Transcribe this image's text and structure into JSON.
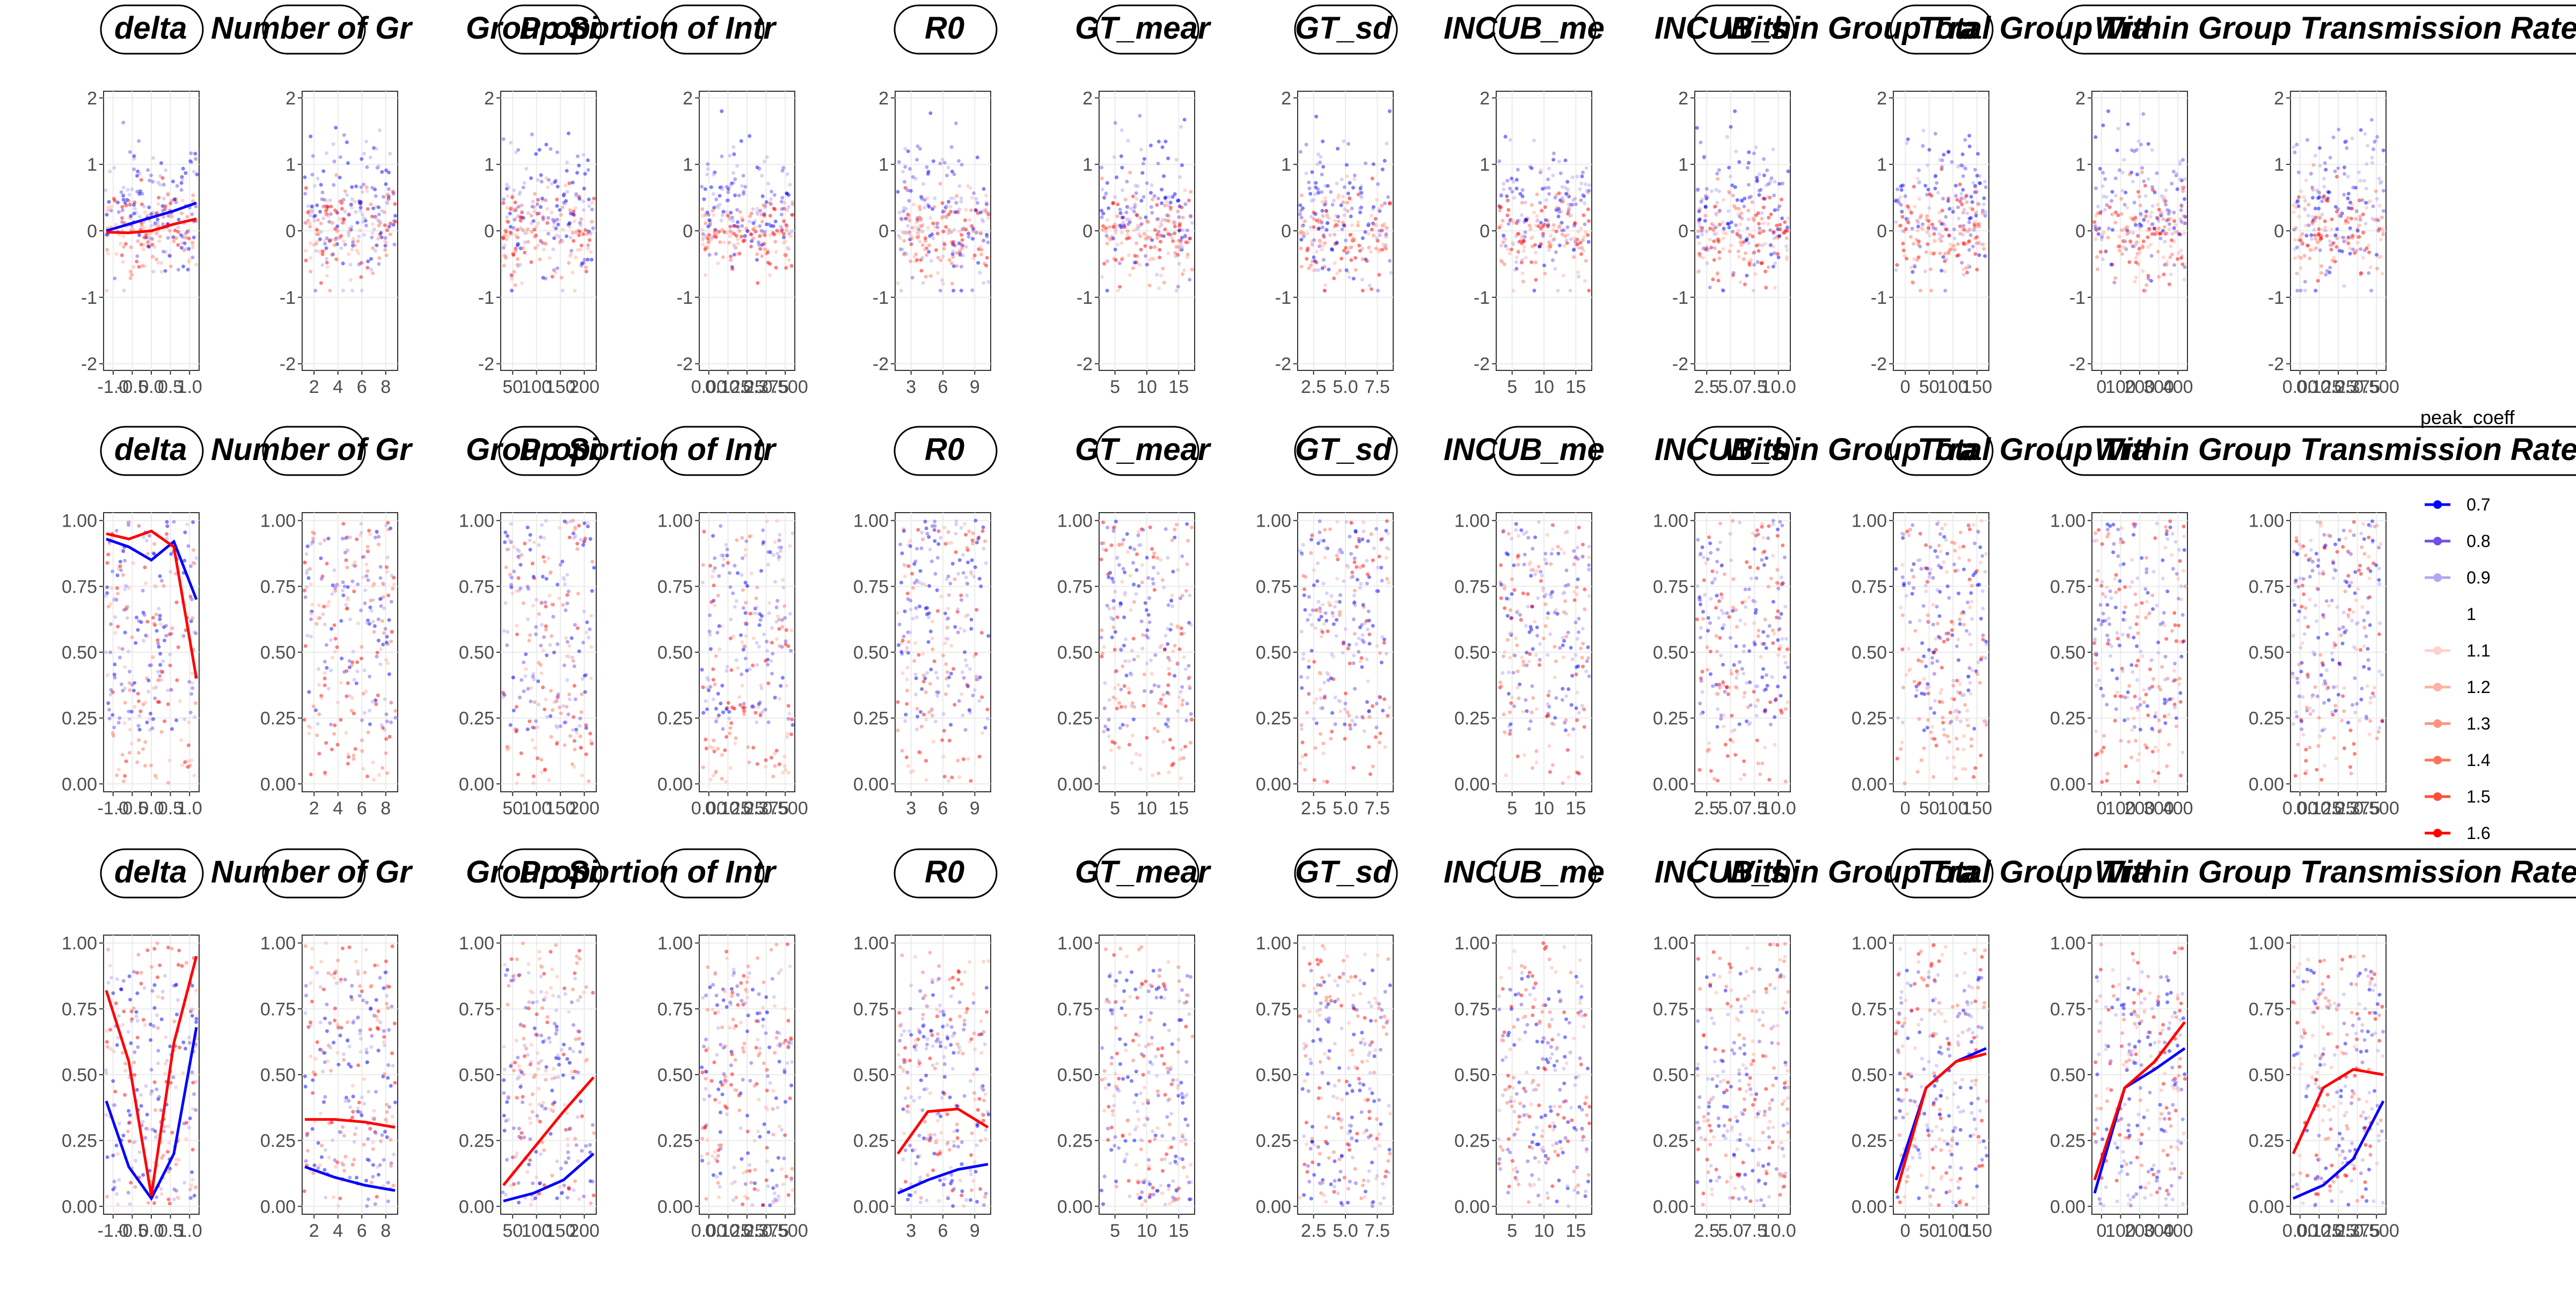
{
  "chart_data": {
    "type": "scatter",
    "description_note": "",
    "legend": {
      "title": "peak_coeff",
      "placement": "right",
      "entries": [
        {
          "label": "0.7",
          "color": "#0000ff"
        },
        {
          "label": "0.8",
          "color": "#6f50e8"
        },
        {
          "label": "0.9",
          "color": "#b4a7f2"
        },
        {
          "label": "1",
          "color": "#ffffff"
        },
        {
          "label": "1.1",
          "color": "#ffd2cc"
        },
        {
          "label": "1.2",
          "color": "#ffb2a3"
        },
        {
          "label": "1.3",
          "color": "#ff9480"
        },
        {
          "label": "1.4",
          "color": "#ff735c"
        },
        {
          "label": "1.5",
          "color": "#ff4d36"
        },
        {
          "label": "1.6",
          "color": "#ff0000"
        }
      ]
    },
    "panels": [
      {
        "strip": "delta",
        "xlim": [
          -1,
          1
        ],
        "xticks": [
          "-1.0",
          "-0.5",
          "0.0",
          "0.5",
          "1.0"
        ]
      },
      {
        "strip": "Number of Gr",
        "xlim": [
          1.7,
          8.3
        ],
        "xticks": [
          "2",
          "4",
          "6",
          "8"
        ]
      },
      {
        "strip": "Group Si",
        "xlim": [
          10,
          210
        ],
        "xticks": [
          "50",
          "100",
          "150",
          "200"
        ]
      },
      {
        "strip": "Proportion of Intr",
        "xlim": [
          0,
          0.5
        ],
        "xticks": [
          "0.00",
          "0.125",
          "0.25",
          "0.375",
          "0.500"
        ]
      },
      {
        "strip": "R0",
        "xlim": [
          0.5,
          11
        ],
        "xticks": [
          "3",
          "6",
          "9"
        ]
      },
      {
        "strip": "GT_mear",
        "xlim": [
          0.5,
          17
        ],
        "xticks": [
          "5",
          "10",
          "15"
        ]
      },
      {
        "strip": "GT_sd",
        "xlim": [
          0.5,
          9
        ],
        "xticks": [
          "2.5",
          "5.0",
          "7.5"
        ]
      },
      {
        "strip": "INCUB_me",
        "xlim": [
          0.5,
          17
        ],
        "xticks": [
          "5",
          "10",
          "15"
        ]
      },
      {
        "strip": "INCUB_s",
        "xlim": [
          0.5,
          10
        ],
        "xticks": [
          "2.5",
          "5.0",
          "7.5",
          "10.0"
        ]
      },
      {
        "strip": "Within Group Tra",
        "xlim": [
          0,
          160
        ],
        "xticks": [
          "0",
          "50",
          "100",
          "150"
        ]
      },
      {
        "strip": "Total Group Tra",
        "xlim": [
          -10,
          420
        ],
        "xticks": [
          "0",
          "100",
          "200",
          "300",
          "400"
        ]
      },
      {
        "strip": "Within Group Transmission Rate",
        "xlim": [
          0,
          0.5
        ],
        "xticks": [
          "0.00",
          "0.125",
          "0.25",
          "0.375",
          "0.500"
        ]
      }
    ],
    "rows": [
      {
        "ylim": [
          -2.1,
          2.1
        ],
        "yticks": [
          "-2",
          "-1",
          "0",
          "1",
          "2"
        ]
      },
      {
        "ylim": [
          -0.03,
          1.03
        ],
        "yticks": [
          "0.00",
          "0.25",
          "0.50",
          "0.75",
          "1.00"
        ]
      },
      {
        "ylim": [
          -0.03,
          1.03
        ],
        "yticks": [
          "0.00",
          "0.25",
          "0.50",
          "0.75",
          "1.00"
        ]
      }
    ],
    "trend_lines": [
      {
        "row": 0,
        "panel": 0,
        "series": "0.7",
        "y": [
          0.0,
          0.1,
          0.2,
          0.3,
          0.42
        ]
      },
      {
        "row": 0,
        "panel": 0,
        "series": "1.6",
        "y": [
          -0.02,
          -0.03,
          0.0,
          0.1,
          0.18
        ]
      },
      {
        "row": 1,
        "panel": 0,
        "series": "0.7",
        "y": [
          0.93,
          0.9,
          0.85,
          0.92,
          0.7
        ]
      },
      {
        "row": 1,
        "panel": 0,
        "series": "1.6",
        "y": [
          0.95,
          0.93,
          0.96,
          0.9,
          0.4
        ]
      },
      {
        "row": 2,
        "panel": 0,
        "series": "0.7",
        "y": [
          0.4,
          0.15,
          0.03,
          0.2,
          0.68
        ]
      },
      {
        "row": 2,
        "panel": 0,
        "series": "1.6",
        "y": [
          0.82,
          0.55,
          0.04,
          0.62,
          0.95
        ]
      },
      {
        "row": 2,
        "panel": 1,
        "series": "0.7",
        "y": [
          0.15,
          0.11,
          0.08,
          0.06
        ]
      },
      {
        "row": 2,
        "panel": 1,
        "series": "1.6",
        "y": [
          0.33,
          0.33,
          0.32,
          0.3
        ]
      },
      {
        "row": 2,
        "panel": 2,
        "series": "0.7",
        "y": [
          0.02,
          0.05,
          0.1,
          0.2
        ]
      },
      {
        "row": 2,
        "panel": 2,
        "series": "1.6",
        "y": [
          0.08,
          0.22,
          0.36,
          0.49
        ]
      },
      {
        "row": 2,
        "panel": 4,
        "series": "0.7",
        "y": [
          0.05,
          0.1,
          0.14,
          0.16
        ]
      },
      {
        "row": 2,
        "panel": 4,
        "series": "1.6",
        "y": [
          0.2,
          0.36,
          0.37,
          0.3
        ]
      },
      {
        "row": 2,
        "panel": 9,
        "series": "0.7",
        "y": [
          0.1,
          0.45,
          0.55,
          0.6
        ]
      },
      {
        "row": 2,
        "panel": 9,
        "series": "1.6",
        "y": [
          0.05,
          0.45,
          0.55,
          0.58
        ]
      },
      {
        "row": 2,
        "panel": 10,
        "series": "0.7",
        "y": [
          0.05,
          0.45,
          0.52,
          0.6
        ]
      },
      {
        "row": 2,
        "panel": 10,
        "series": "1.6",
        "y": [
          0.1,
          0.45,
          0.55,
          0.7
        ]
      },
      {
        "row": 2,
        "panel": 11,
        "series": "0.7",
        "y": [
          0.03,
          0.08,
          0.18,
          0.4
        ]
      },
      {
        "row": 2,
        "panel": 11,
        "series": "1.6",
        "y": [
          0.2,
          0.45,
          0.52,
          0.5
        ]
      }
    ]
  }
}
